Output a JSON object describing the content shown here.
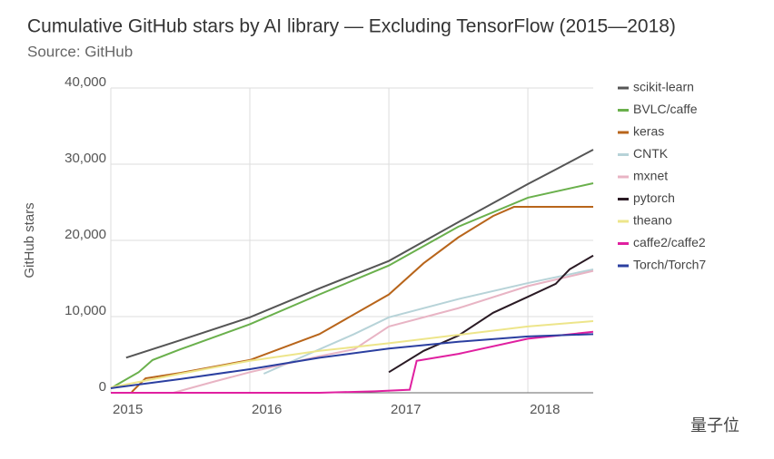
{
  "chart_data": {
    "type": "line",
    "title": "Cumulative GitHub stars by AI library — Excluding TensorFlow (2015—2018)",
    "subtitle": "Source: GitHub",
    "y_label": "GitHub stars",
    "watermark": "量子位",
    "xlim": [
      2015,
      2018.47
    ],
    "xticks": [
      2015,
      2016,
      2017,
      2018
    ],
    "ylim": [
      0,
      40000
    ],
    "yticks": [
      0,
      {
        "value": 10000,
        "label": "10,000"
      },
      {
        "value": 20000,
        "label": "20,000"
      },
      {
        "value": 30000,
        "label": "30,000"
      },
      {
        "value": 40000,
        "label": "40,000"
      }
    ],
    "grid": true,
    "legend": "right",
    "series": [
      {
        "name": "scikit-learn",
        "color": "#555555",
        "x": [
          2015.11,
          2015.5,
          2016,
          2016.5,
          2017,
          2017.5,
          2018,
          2018.2,
          2018.47
        ],
        "values": [
          4600,
          6900,
          9900,
          13700,
          17300,
          22400,
          27400,
          29300,
          31900
        ]
      },
      {
        "name": "BVLC/caffe",
        "color": "#6ab04c",
        "x": [
          2015,
          2015.2,
          2015.3,
          2015.5,
          2016,
          2016.5,
          2017,
          2017.5,
          2018,
          2018.47
        ],
        "values": [
          600,
          2700,
          4300,
          5700,
          9000,
          12900,
          16700,
          21800,
          25600,
          27500
        ]
      },
      {
        "name": "keras",
        "color": "#b8651b",
        "x": [
          2015.15,
          2015.25,
          2015.5,
          2016,
          2016.5,
          2017,
          2017.25,
          2017.5,
          2017.75,
          2017.9,
          2018,
          2018.47
        ],
        "values": [
          100,
          1900,
          2600,
          4300,
          7700,
          12900,
          17000,
          20400,
          23200,
          24400,
          24400,
          24400
        ]
      },
      {
        "name": "CNTK",
        "color": "#b7d3d8",
        "x": [
          2016.1,
          2016.5,
          2016.75,
          2017,
          2017.5,
          2018,
          2018.47
        ],
        "values": [
          2500,
          5700,
          7700,
          9900,
          12300,
          14400,
          16200
        ]
      },
      {
        "name": "mxnet",
        "color": "#e8b4c4",
        "x": [
          2015.45,
          2015.75,
          2016,
          2016.5,
          2016.75,
          2017,
          2017.5,
          2018,
          2018.47
        ],
        "values": [
          0,
          1500,
          2700,
          4800,
          5700,
          8700,
          11100,
          14000,
          16000
        ]
      },
      {
        "name": "pytorch",
        "color": "#2a1a24",
        "x": [
          2017,
          2017.25,
          2017.5,
          2017.75,
          2018,
          2018.2,
          2018.3,
          2018.47
        ],
        "values": [
          2700,
          5500,
          7500,
          10500,
          12600,
          14300,
          16200,
          18000
        ]
      },
      {
        "name": "theano",
        "color": "#ede58a",
        "x": [
          2015,
          2015.5,
          2016,
          2016.5,
          2017,
          2017.5,
          2018,
          2018.47
        ],
        "values": [
          700,
          2500,
          4200,
          5500,
          6500,
          7600,
          8700,
          9400
        ]
      },
      {
        "name": "caffe2/caffe2",
        "color": "#e020a0",
        "x": [
          2015,
          2016.5,
          2016.9,
          2017.15,
          2017.2,
          2017.5,
          2018,
          2018.47
        ],
        "values": [
          0,
          0,
          200,
          400,
          4200,
          5100,
          7100,
          8000
        ]
      },
      {
        "name": "Torch/Torch7",
        "color": "#2b3fa0",
        "x": [
          2015,
          2015.5,
          2016,
          2016.5,
          2017,
          2017.5,
          2018,
          2018.47
        ],
        "values": [
          600,
          1800,
          3100,
          4600,
          5800,
          6700,
          7400,
          7700
        ]
      }
    ]
  }
}
